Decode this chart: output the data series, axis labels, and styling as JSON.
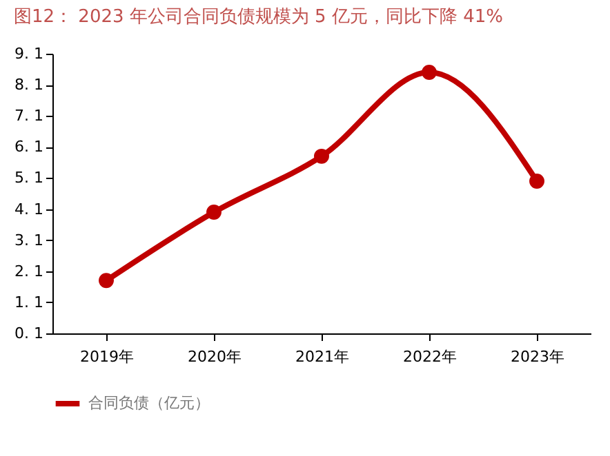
{
  "chart_data": {
    "type": "line",
    "title": "图12： 2023 年公司合同负债规模为 5 亿元，同比下降 41%",
    "categories": [
      "2019年",
      "2020年",
      "2021年",
      "2022年",
      "2023年"
    ],
    "series": [
      {
        "name": "合同负债（亿元）",
        "color": "#c00000",
        "values": [
          1.8,
          4.0,
          5.8,
          8.5,
          5.0
        ]
      }
    ],
    "ylim": [
      0.1,
      9.1
    ],
    "yticks": [
      0.1,
      1.1,
      2.1,
      3.1,
      4.1,
      5.1,
      6.1,
      7.1,
      8.1,
      9.1
    ],
    "marker": "circle",
    "line_style": "solid",
    "grid": false,
    "legend": "bottom"
  }
}
